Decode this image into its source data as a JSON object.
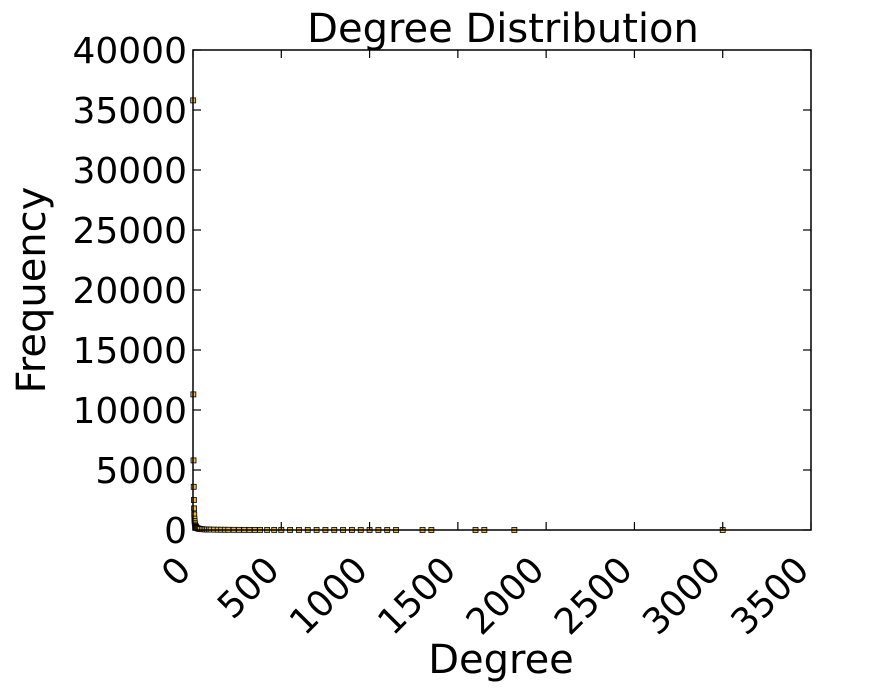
{
  "chart_data": {
    "type": "scatter",
    "title": "Degree Distribution",
    "xlabel": "Degree",
    "ylabel": "Frequency",
    "xlim": [
      0,
      3500
    ],
    "ylim": [
      0,
      40000
    ],
    "xticks": [
      0,
      500,
      1000,
      1500,
      2000,
      2500,
      3000,
      3500
    ],
    "yticks": [
      0,
      5000,
      10000,
      15000,
      20000,
      25000,
      30000,
      35000,
      40000
    ],
    "xtick_labels": [
      "0",
      "500",
      "1000",
      "1500",
      "2000",
      "2500",
      "3000",
      "3500"
    ],
    "ytick_labels": [
      "0",
      "5000",
      "10000",
      "15000",
      "20000",
      "25000",
      "30000",
      "35000",
      "40000"
    ],
    "x_tick_rotation": "45 degrees",
    "grid": false,
    "marker": "square",
    "marker_color": "#e8b84a",
    "marker_edge_color": "#000000",
    "series": [
      {
        "points": [
          [
            1,
            35800
          ],
          [
            2,
            11300
          ],
          [
            3,
            5800
          ],
          [
            4,
            3600
          ],
          [
            5,
            2500
          ],
          [
            6,
            1800
          ],
          [
            7,
            1300
          ],
          [
            8,
            950
          ],
          [
            9,
            750
          ],
          [
            10,
            600
          ],
          [
            12,
            450
          ],
          [
            14,
            350
          ],
          [
            16,
            280
          ],
          [
            18,
            230
          ],
          [
            20,
            190
          ],
          [
            25,
            150
          ],
          [
            30,
            120
          ],
          [
            35,
            100
          ],
          [
            40,
            85
          ],
          [
            50,
            70
          ],
          [
            60,
            60
          ],
          [
            70,
            50
          ],
          [
            80,
            45
          ],
          [
            90,
            40
          ],
          [
            100,
            35
          ],
          [
            120,
            30
          ],
          [
            140,
            25
          ],
          [
            160,
            22
          ],
          [
            180,
            20
          ],
          [
            200,
            18
          ],
          [
            230,
            15
          ],
          [
            260,
            13
          ],
          [
            290,
            11
          ],
          [
            320,
            10
          ],
          [
            350,
            9
          ],
          [
            380,
            8
          ],
          [
            420,
            7
          ],
          [
            460,
            6
          ],
          [
            500,
            5
          ],
          [
            550,
            5
          ],
          [
            600,
            4
          ],
          [
            650,
            4
          ],
          [
            700,
            3
          ],
          [
            750,
            3
          ],
          [
            800,
            3
          ],
          [
            850,
            2
          ],
          [
            900,
            2
          ],
          [
            950,
            2
          ],
          [
            1000,
            2
          ],
          [
            1050,
            1
          ],
          [
            1100,
            1
          ],
          [
            1150,
            1
          ],
          [
            1300,
            1
          ],
          [
            1350,
            1
          ],
          [
            1600,
            1
          ],
          [
            1650,
            1
          ],
          [
            1820,
            1
          ],
          [
            3000,
            1
          ]
        ]
      }
    ]
  }
}
